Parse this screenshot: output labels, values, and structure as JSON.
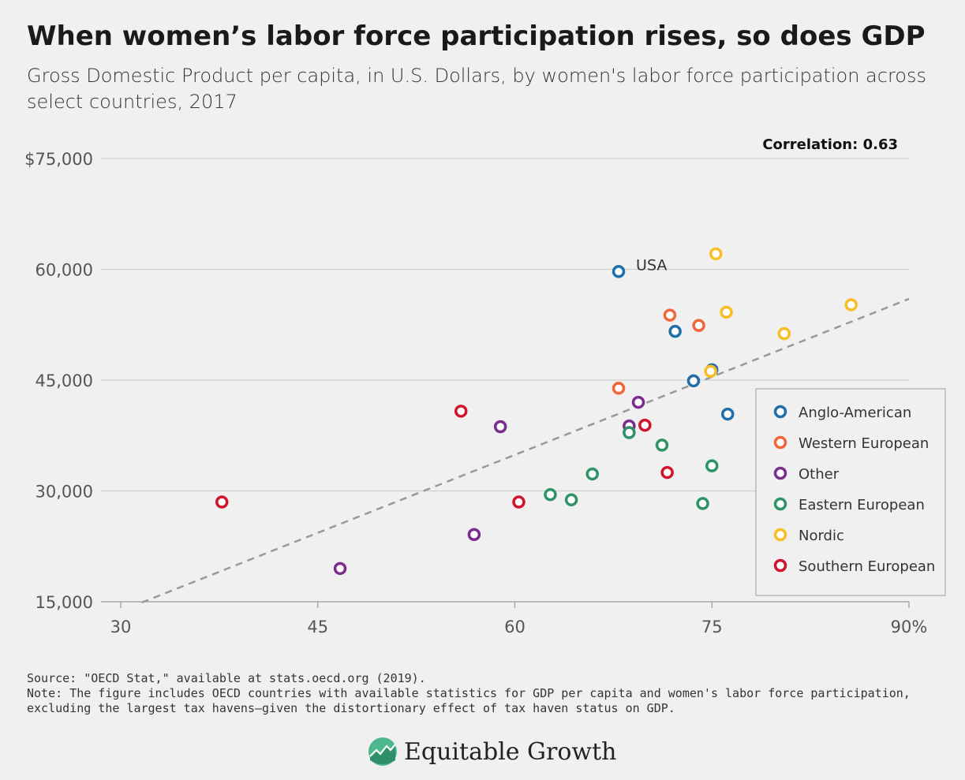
{
  "title": "When women’s labor force participation rises, so does GDP",
  "subtitle": "Gross Domestic Product per capita, in U.S. Dollars, by women's labor force participation across select countries, 2017",
  "correlation_label": "Correlation: 0.63",
  "footer": {
    "source": "Source: \"OECD Stat,\" available at stats.oecd.org (2019).",
    "note": "Note: The figure includes OECD countries with available statistics for GDP per capita and women's labor force participation, excluding the largest tax havens—given the distortionary effect of tax haven status on GDP."
  },
  "brand": {
    "name": "Equitable Growth"
  },
  "colors": {
    "Anglo-American": "#1f6fa8",
    "Western European": "#f2673a",
    "Other": "#7b2d8e",
    "Eastern European": "#2e9468",
    "Nordic": "#f9bd25",
    "Southern European": "#d0142c",
    "trend": "#999999",
    "grid": "#cfcfcf"
  },
  "chart_data": {
    "type": "scatter",
    "xlim": [
      30,
      90
    ],
    "ylim": [
      15000,
      75000
    ],
    "x_ticks": [
      {
        "value": 30,
        "label": "30"
      },
      {
        "value": 45,
        "label": "45"
      },
      {
        "value": 60,
        "label": "60"
      },
      {
        "value": 75,
        "label": "75"
      },
      {
        "value": 90,
        "label": "90%"
      }
    ],
    "y_ticks": [
      {
        "value": 15000,
        "label": "15,000"
      },
      {
        "value": 30000,
        "label": "30,000"
      },
      {
        "value": 45000,
        "label": "45,000"
      },
      {
        "value": 60000,
        "label": "60,000"
      },
      {
        "value": 75000,
        "label": "$75,000"
      }
    ],
    "grid": true,
    "legend_position": "right",
    "trendline": {
      "x": [
        31.6,
        90
      ],
      "y": [
        14900,
        56000
      ]
    },
    "annotations": [
      {
        "text": "USA",
        "x": 67.9,
        "y": 59700
      }
    ],
    "series": [
      {
        "name": "Anglo-American",
        "points": [
          {
            "x": 67.9,
            "y": 59700
          },
          {
            "x": 72.2,
            "y": 51600
          },
          {
            "x": 73.6,
            "y": 44900
          },
          {
            "x": 75.0,
            "y": 46400
          },
          {
            "x": 76.2,
            "y": 40400
          }
        ]
      },
      {
        "name": "Western European",
        "points": [
          {
            "x": 67.9,
            "y": 43900
          },
          {
            "x": 71.8,
            "y": 53800
          },
          {
            "x": 74.0,
            "y": 52400
          }
        ]
      },
      {
        "name": "Other",
        "points": [
          {
            "x": 46.7,
            "y": 19500
          },
          {
            "x": 56.9,
            "y": 24100
          },
          {
            "x": 58.9,
            "y": 38700
          },
          {
            "x": 68.7,
            "y": 38800
          },
          {
            "x": 69.4,
            "y": 42000
          }
        ]
      },
      {
        "name": "Eastern European",
        "points": [
          {
            "x": 62.7,
            "y": 29500
          },
          {
            "x": 64.3,
            "y": 28800
          },
          {
            "x": 65.9,
            "y": 32300
          },
          {
            "x": 68.7,
            "y": 37900
          },
          {
            "x": 71.2,
            "y": 36200
          },
          {
            "x": 74.3,
            "y": 28300
          },
          {
            "x": 75.0,
            "y": 33400
          }
        ]
      },
      {
        "name": "Nordic",
        "points": [
          {
            "x": 74.9,
            "y": 46200
          },
          {
            "x": 75.3,
            "y": 62100
          },
          {
            "x": 76.1,
            "y": 54200
          },
          {
            "x": 80.5,
            "y": 51300
          },
          {
            "x": 85.6,
            "y": 55200
          }
        ]
      },
      {
        "name": "Southern European",
        "points": [
          {
            "x": 37.7,
            "y": 28500
          },
          {
            "x": 55.9,
            "y": 40800
          },
          {
            "x": 60.3,
            "y": 28500
          },
          {
            "x": 69.9,
            "y": 38900
          },
          {
            "x": 71.6,
            "y": 32500
          }
        ]
      }
    ]
  }
}
